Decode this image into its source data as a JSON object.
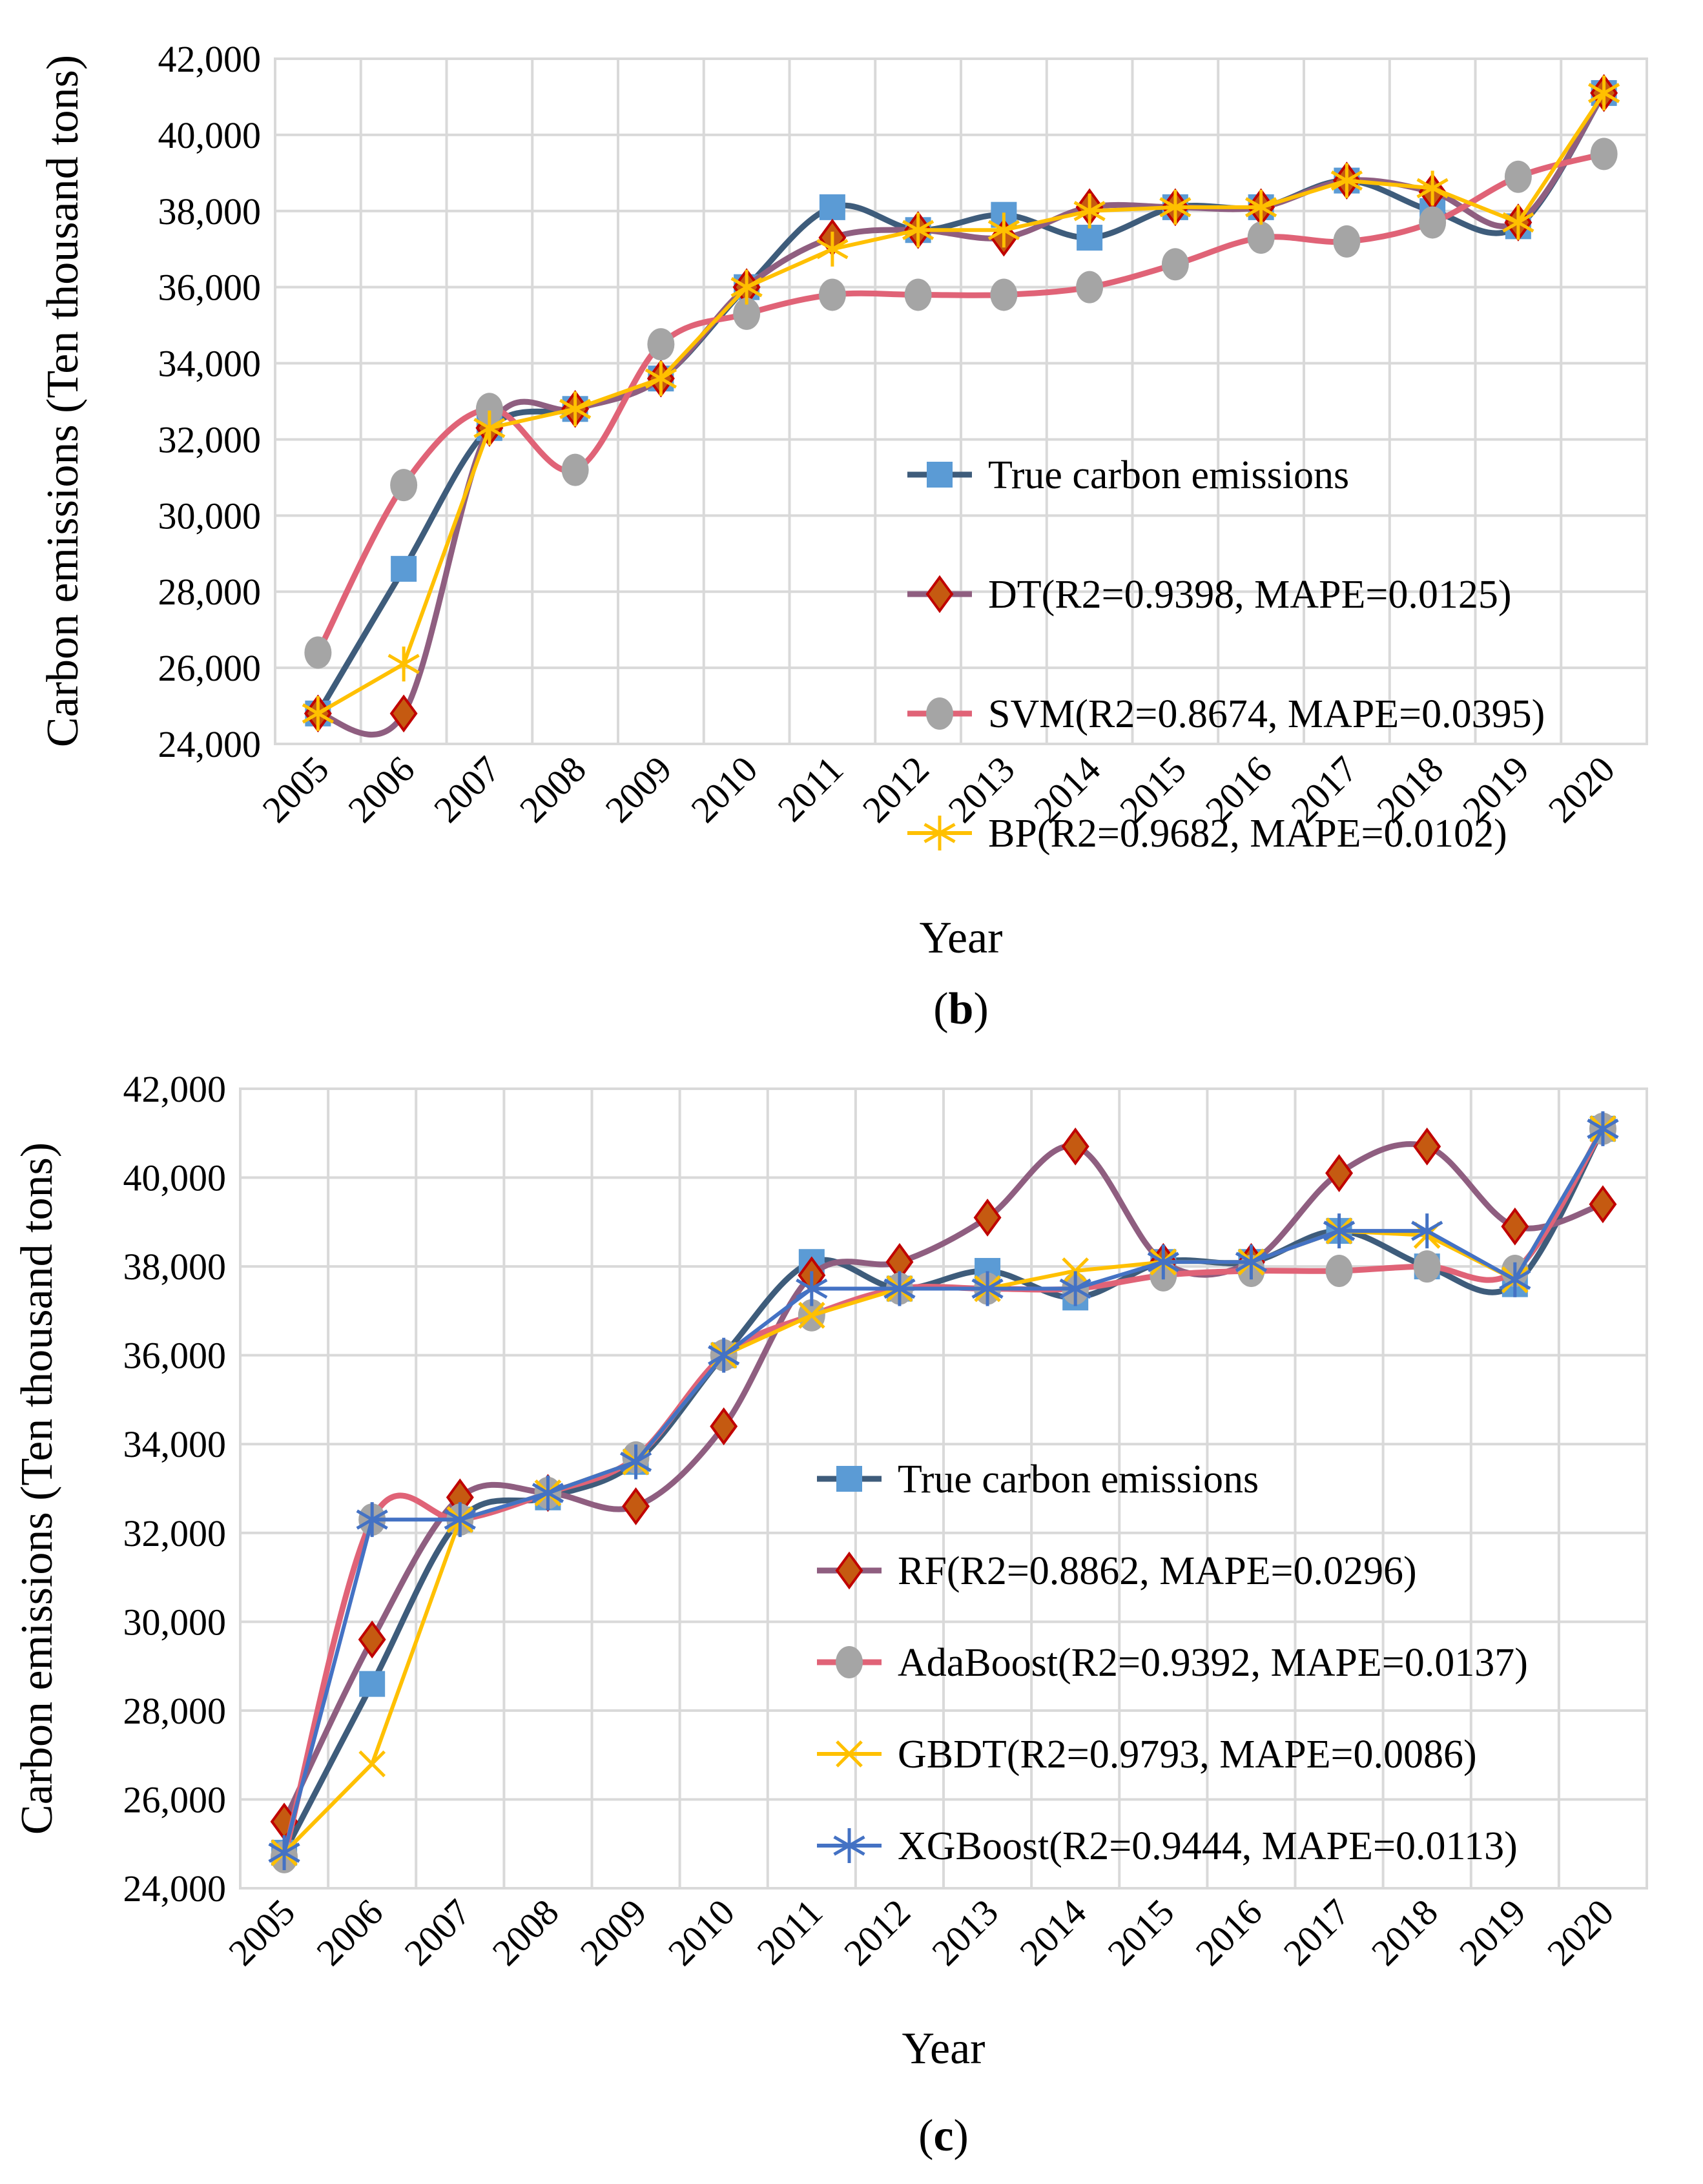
{
  "chart_data": [
    {
      "type": "line",
      "panel": "b",
      "caption_open": "(",
      "caption_letter": "b",
      "caption_close": ")",
      "xlabel": "Year",
      "ylabel": "Carbon emissions (Ten thousand tons)",
      "ylim": [
        24000,
        42000
      ],
      "ytick_step": 2000,
      "ytick_labels": [
        "24,000",
        "26,000",
        "28,000",
        "30,000",
        "32,000",
        "34,000",
        "36,000",
        "38,000",
        "40,000",
        "42,000"
      ],
      "categories": [
        "2005",
        "2006",
        "2007",
        "2008",
        "2009",
        "2010",
        "2011",
        "2012",
        "2013",
        "2014",
        "2015",
        "2016",
        "2017",
        "2018",
        "2019",
        "2020"
      ],
      "grid": true,
      "legend_position": "bottom-right",
      "series": [
        {
          "name": "True carbon emissions",
          "line_color": "#3E5C7B",
          "marker": "square",
          "marker_fill": "#5B9BD5",
          "marker_stroke": "#5B9BD5",
          "smooth": true,
          "values": [
            24800,
            28600,
            32300,
            32800,
            33600,
            36000,
            38100,
            37500,
            37900,
            37300,
            38100,
            38100,
            38800,
            38000,
            37600,
            41100
          ]
        },
        {
          "name": "DT(R2=0.9398, MAPE=0.0125)",
          "line_color": "#8F5E80",
          "marker": "diamond",
          "marker_fill": "#C55A11",
          "marker_stroke": "#C00000",
          "smooth": true,
          "values": [
            24800,
            24800,
            32300,
            32800,
            33600,
            36000,
            37300,
            37500,
            37300,
            38100,
            38100,
            38100,
            38800,
            38500,
            37700,
            41100
          ]
        },
        {
          "name": "SVM(R2=0.8674, MAPE=0.0395)",
          "line_color": "#E06377",
          "marker": "circle",
          "marker_fill": "#A5A5A5",
          "marker_stroke": "#A5A5A5",
          "smooth": true,
          "values": [
            26400,
            30800,
            32800,
            31200,
            34500,
            35300,
            35800,
            35800,
            35800,
            36000,
            36600,
            37300,
            37200,
            37700,
            38900,
            39500
          ]
        },
        {
          "name": "BP(R2=0.9682, MAPE=0.0102)",
          "line_color": "#FFC000",
          "marker": "star",
          "marker_fill": "#FFC000",
          "marker_stroke": "#FFC000",
          "smooth": false,
          "values": [
            24800,
            26100,
            32300,
            32800,
            33600,
            36000,
            37000,
            37500,
            37500,
            38000,
            38100,
            38100,
            38800,
            38600,
            37700,
            41100
          ]
        }
      ]
    },
    {
      "type": "line",
      "panel": "c",
      "caption_open": "(",
      "caption_letter": "c",
      "caption_close": ")",
      "xlabel": "Year",
      "ylabel": "Carbon emissions (Ten thousand tons)",
      "ylim": [
        24000,
        42000
      ],
      "ytick_step": 2000,
      "ytick_labels": [
        "24,000",
        "26,000",
        "28,000",
        "30,000",
        "32,000",
        "34,000",
        "36,000",
        "38,000",
        "40,000",
        "42,000"
      ],
      "categories": [
        "2005",
        "2006",
        "2007",
        "2008",
        "2009",
        "2010",
        "2011",
        "2012",
        "2013",
        "2014",
        "2015",
        "2016",
        "2017",
        "2018",
        "2019",
        "2020"
      ],
      "grid": true,
      "legend_position": "bottom-right",
      "series": [
        {
          "name": "True carbon emissions",
          "line_color": "#3E5C7B",
          "marker": "square",
          "marker_fill": "#5B9BD5",
          "marker_stroke": "#5B9BD5",
          "smooth": true,
          "values": [
            24800,
            28600,
            32300,
            32800,
            33600,
            36000,
            38100,
            37500,
            37900,
            37300,
            38100,
            38100,
            38800,
            38000,
            37600,
            41100
          ]
        },
        {
          "name": "RF(R2=0.8862, MAPE=0.0296)",
          "line_color": "#8F5E80",
          "marker": "diamond",
          "marker_fill": "#C55A11",
          "marker_stroke": "#C00000",
          "smooth": true,
          "values": [
            25500,
            29600,
            32800,
            32900,
            32600,
            34400,
            37800,
            38100,
            39100,
            40700,
            38100,
            38100,
            40100,
            40700,
            38900,
            39400
          ]
        },
        {
          "name": "AdaBoost(R2=0.9392, MAPE=0.0137)",
          "line_color": "#E06377",
          "marker": "circle",
          "marker_fill": "#A5A5A5",
          "marker_stroke": "#A5A5A5",
          "smooth": true,
          "values": [
            24700,
            32300,
            32300,
            32900,
            33700,
            36000,
            36900,
            37500,
            37500,
            37500,
            37800,
            37900,
            37900,
            38000,
            37900,
            41100
          ]
        },
        {
          "name": "GBDT(R2=0.9793, MAPE=0.0086)",
          "line_color": "#FFC000",
          "marker": "x",
          "marker_fill": "#FFC000",
          "marker_stroke": "#FFC000",
          "smooth": false,
          "values": [
            24800,
            26800,
            32300,
            32900,
            33600,
            36000,
            36900,
            37500,
            37500,
            37900,
            38100,
            38100,
            38800,
            38700,
            37700,
            41100
          ]
        },
        {
          "name": "XGBoost(R2=0.9444, MAPE=0.0113)",
          "line_color": "#4472C4",
          "marker": "star",
          "marker_fill": "#4472C4",
          "marker_stroke": "#4472C4",
          "smooth": false,
          "values": [
            24800,
            32300,
            32300,
            32900,
            33600,
            36000,
            37500,
            37500,
            37500,
            37500,
            38100,
            38100,
            38800,
            38800,
            37700,
            41100
          ]
        }
      ]
    }
  ]
}
